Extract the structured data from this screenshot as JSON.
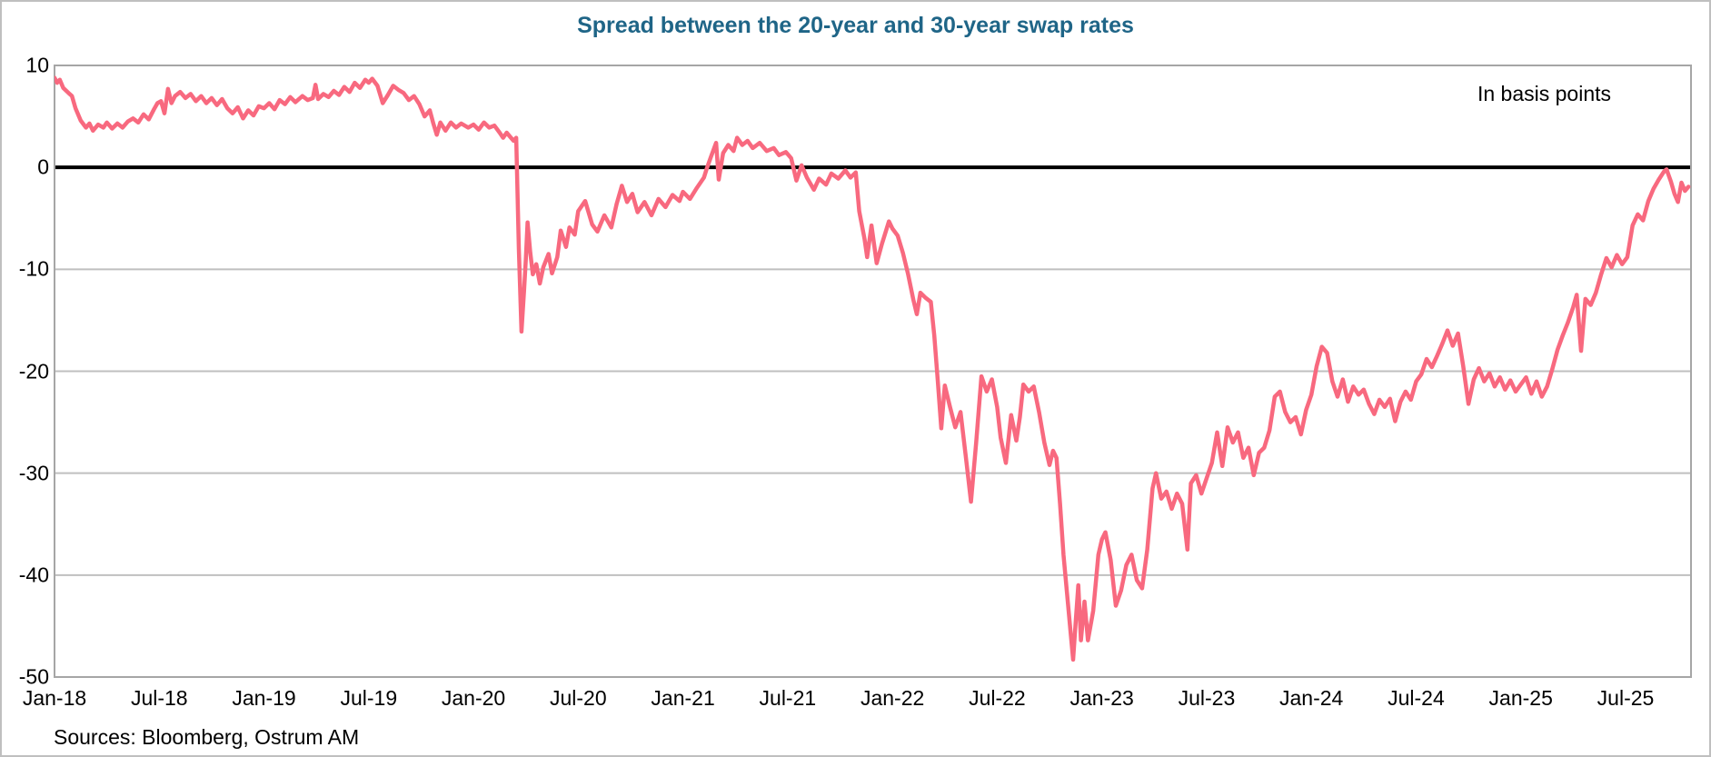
{
  "title": "Spread between the 20-year and 30-year swap rates",
  "annotation": "In basis points",
  "source": "Sources: Bloomberg, Ostrum AM",
  "colors": {
    "title": "#1F6587",
    "line": "#F8697F",
    "zero_line": "#000000",
    "gridline": "#BFBFBF",
    "plot_border": "#A6A6A6",
    "frame_border": "#BFBFBF"
  },
  "chart_data": {
    "type": "line",
    "title": "Spread between the 20-year and 30-year swap rates",
    "unit_label": "In basis points",
    "series_name": "Spread between the 20-year and 30-year swap rates (bp)",
    "xlabel": "",
    "ylabel": "",
    "x_unit": "months since Jan-2018",
    "xlim_months": [
      0,
      93.75
    ],
    "ylim": [
      -50,
      10
    ],
    "y_ticks": [
      10,
      0,
      -10,
      -20,
      -30,
      -40,
      -50
    ],
    "x_tick_months": [
      0,
      6,
      12,
      18,
      24,
      30,
      36,
      42,
      48,
      54,
      60,
      66,
      72,
      78,
      84,
      90
    ],
    "x_tick_labels": [
      "Jan-18",
      "Jul-18",
      "Jan-19",
      "Jul-19",
      "Jan-20",
      "Jul-20",
      "Jan-21",
      "Jul-21",
      "Jan-22",
      "Jul-22",
      "Jan-23",
      "Jul-23",
      "Jan-24",
      "Jul-24",
      "Jan-25",
      "Jul-25"
    ],
    "grid": "horizontal-only",
    "zero_line": true,
    "legend": "none",
    "points": [
      [
        0,
        8.8
      ],
      [
        0.15,
        8.3
      ],
      [
        0.3,
        8.6
      ],
      [
        0.5,
        7.8
      ],
      [
        0.8,
        7.3
      ],
      [
        1,
        7
      ],
      [
        1.2,
        5.8
      ],
      [
        1.5,
        4.6
      ],
      [
        1.8,
        3.9
      ],
      [
        2,
        4.3
      ],
      [
        2.2,
        3.6
      ],
      [
        2.5,
        4.2
      ],
      [
        2.8,
        3.9
      ],
      [
        3,
        4.4
      ],
      [
        3.3,
        3.8
      ],
      [
        3.6,
        4.3
      ],
      [
        3.9,
        3.9
      ],
      [
        4.2,
        4.5
      ],
      [
        4.5,
        4.8
      ],
      [
        4.8,
        4.4
      ],
      [
        5.1,
        5.2
      ],
      [
        5.4,
        4.7
      ],
      [
        5.7,
        5.7
      ],
      [
        5.9,
        6.3
      ],
      [
        6.1,
        6.5
      ],
      [
        6.3,
        5.3
      ],
      [
        6.5,
        7.7
      ],
      [
        6.7,
        6.3
      ],
      [
        6.9,
        7
      ],
      [
        7.2,
        7.4
      ],
      [
        7.5,
        6.8
      ],
      [
        7.8,
        7.2
      ],
      [
        8.1,
        6.5
      ],
      [
        8.4,
        7
      ],
      [
        8.7,
        6.3
      ],
      [
        9,
        6.8
      ],
      [
        9.3,
        6.1
      ],
      [
        9.6,
        6.7
      ],
      [
        9.9,
        5.8
      ],
      [
        10.2,
        5.3
      ],
      [
        10.5,
        5.9
      ],
      [
        10.8,
        4.8
      ],
      [
        11.1,
        5.6
      ],
      [
        11.4,
        5.1
      ],
      [
        11.7,
        6
      ],
      [
        12,
        5.8
      ],
      [
        12.3,
        6.3
      ],
      [
        12.6,
        5.7
      ],
      [
        12.9,
        6.6
      ],
      [
        13.2,
        6.2
      ],
      [
        13.5,
        6.9
      ],
      [
        13.8,
        6.4
      ],
      [
        14.2,
        7
      ],
      [
        14.5,
        6.6
      ],
      [
        14.8,
        6.8
      ],
      [
        14.95,
        8.1
      ],
      [
        15.1,
        6.7
      ],
      [
        15.4,
        7.2
      ],
      [
        15.7,
        6.9
      ],
      [
        16,
        7.5
      ],
      [
        16.3,
        7.1
      ],
      [
        16.6,
        7.9
      ],
      [
        16.9,
        7.4
      ],
      [
        17.2,
        8.3
      ],
      [
        17.5,
        7.8
      ],
      [
        17.8,
        8.6
      ],
      [
        18,
        8.3
      ],
      [
        18.2,
        8.7
      ],
      [
        18.5,
        8
      ],
      [
        18.8,
        6.3
      ],
      [
        19.1,
        7.1
      ],
      [
        19.4,
        8
      ],
      [
        19.7,
        7.6
      ],
      [
        20,
        7.3
      ],
      [
        20.3,
        6.6
      ],
      [
        20.6,
        7
      ],
      [
        20.9,
        6.2
      ],
      [
        21.2,
        5
      ],
      [
        21.5,
        5.6
      ],
      [
        21.7,
        4.3
      ],
      [
        21.9,
        3.2
      ],
      [
        22.1,
        4.4
      ],
      [
        22.4,
        3.6
      ],
      [
        22.7,
        4.4
      ],
      [
        23,
        3.9
      ],
      [
        23.3,
        4.3
      ],
      [
        23.7,
        3.9
      ],
      [
        24,
        4.2
      ],
      [
        24.3,
        3.7
      ],
      [
        24.6,
        4.4
      ],
      [
        24.9,
        3.9
      ],
      [
        25.2,
        4.1
      ],
      [
        25.5,
        3.4
      ],
      [
        25.7,
        2.9
      ],
      [
        25.9,
        3.4
      ],
      [
        26.1,
        3
      ],
      [
        26.3,
        2.6
      ],
      [
        26.45,
        2.9
      ],
      [
        26.6,
        -8
      ],
      [
        26.75,
        -16.1
      ],
      [
        26.9,
        -12
      ],
      [
        27,
        -9
      ],
      [
        27.1,
        -5.4
      ],
      [
        27.25,
        -8.3
      ],
      [
        27.4,
        -10.5
      ],
      [
        27.6,
        -9.5
      ],
      [
        27.8,
        -11.4
      ],
      [
        28,
        -9.8
      ],
      [
        28.3,
        -8.5
      ],
      [
        28.5,
        -10.4
      ],
      [
        28.8,
        -8.8
      ],
      [
        29,
        -6.2
      ],
      [
        29.3,
        -7.8
      ],
      [
        29.5,
        -5.9
      ],
      [
        29.8,
        -6.6
      ],
      [
        30,
        -4.3
      ],
      [
        30.4,
        -3.3
      ],
      [
        30.8,
        -5.6
      ],
      [
        31.1,
        -6.3
      ],
      [
        31.5,
        -4.7
      ],
      [
        31.9,
        -5.9
      ],
      [
        32.2,
        -3.6
      ],
      [
        32.5,
        -1.8
      ],
      [
        32.8,
        -3.4
      ],
      [
        33.1,
        -2.6
      ],
      [
        33.4,
        -4.4
      ],
      [
        33.8,
        -3.4
      ],
      [
        34.2,
        -4.7
      ],
      [
        34.6,
        -3.1
      ],
      [
        35,
        -3.9
      ],
      [
        35.4,
        -2.7
      ],
      [
        35.8,
        -3.3
      ],
      [
        36,
        -2.4
      ],
      [
        36.4,
        -3.1
      ],
      [
        36.8,
        -2
      ],
      [
        37.2,
        -1
      ],
      [
        37.35,
        -0.2
      ],
      [
        37.6,
        1
      ],
      [
        37.9,
        2.4
      ],
      [
        38.05,
        -1.2
      ],
      [
        38.3,
        1.4
      ],
      [
        38.6,
        2.2
      ],
      [
        38.9,
        1.6
      ],
      [
        39.1,
        2.9
      ],
      [
        39.4,
        2.2
      ],
      [
        39.7,
        2.6
      ],
      [
        40,
        1.9
      ],
      [
        40.4,
        2.4
      ],
      [
        40.8,
        1.6
      ],
      [
        41.2,
        1.9
      ],
      [
        41.5,
        1.2
      ],
      [
        41.9,
        1.5
      ],
      [
        42.2,
        0.9
      ],
      [
        42.5,
        -1.3
      ],
      [
        42.8,
        0.2
      ],
      [
        43.1,
        -1
      ],
      [
        43.5,
        -2.2
      ],
      [
        43.8,
        -1.1
      ],
      [
        44.2,
        -1.7
      ],
      [
        44.5,
        -0.6
      ],
      [
        44.9,
        -1.1
      ],
      [
        45.3,
        -0.3
      ],
      [
        45.6,
        -1
      ],
      [
        45.9,
        -0.5
      ],
      [
        46.1,
        -4.3
      ],
      [
        46.4,
        -7
      ],
      [
        46.55,
        -8.8
      ],
      [
        46.8,
        -5.7
      ],
      [
        47.1,
        -9.4
      ],
      [
        47.4,
        -7.5
      ],
      [
        47.8,
        -5.3
      ],
      [
        48,
        -6
      ],
      [
        48.3,
        -6.7
      ],
      [
        48.6,
        -8.4
      ],
      [
        48.9,
        -10.5
      ],
      [
        49.2,
        -13
      ],
      [
        49.4,
        -14.4
      ],
      [
        49.6,
        -12.3
      ],
      [
        49.9,
        -12.8
      ],
      [
        50.2,
        -13.2
      ],
      [
        50.4,
        -16.5
      ],
      [
        50.6,
        -21
      ],
      [
        50.8,
        -25.6
      ],
      [
        51,
        -21.4
      ],
      [
        51.3,
        -23.5
      ],
      [
        51.6,
        -25.5
      ],
      [
        51.9,
        -24
      ],
      [
        52.2,
        -28.3
      ],
      [
        52.5,
        -32.8
      ],
      [
        52.8,
        -27
      ],
      [
        53.1,
        -20.5
      ],
      [
        53.4,
        -22
      ],
      [
        53.7,
        -20.8
      ],
      [
        54,
        -23.5
      ],
      [
        54.2,
        -26.5
      ],
      [
        54.5,
        -29
      ],
      [
        54.8,
        -24.3
      ],
      [
        55.1,
        -26.8
      ],
      [
        55.3,
        -24.5
      ],
      [
        55.5,
        -21.3
      ],
      [
        55.8,
        -22
      ],
      [
        56.1,
        -21.5
      ],
      [
        56.4,
        -24
      ],
      [
        56.7,
        -27
      ],
      [
        57,
        -29.2
      ],
      [
        57.2,
        -27.8
      ],
      [
        57.4,
        -28.5
      ],
      [
        57.6,
        -33
      ],
      [
        57.8,
        -38
      ],
      [
        58,
        -41.7
      ],
      [
        58.2,
        -45.5
      ],
      [
        58.35,
        -48.3
      ],
      [
        58.5,
        -44.5
      ],
      [
        58.65,
        -41
      ],
      [
        58.8,
        -46.4
      ],
      [
        59,
        -42.6
      ],
      [
        59.2,
        -46.4
      ],
      [
        59.5,
        -43.5
      ],
      [
        59.8,
        -38
      ],
      [
        60,
        -36.5
      ],
      [
        60.2,
        -35.8
      ],
      [
        60.5,
        -38.5
      ],
      [
        60.8,
        -43
      ],
      [
        61.1,
        -41.5
      ],
      [
        61.4,
        -39
      ],
      [
        61.7,
        -38
      ],
      [
        62,
        -40.5
      ],
      [
        62.3,
        -41.3
      ],
      [
        62.6,
        -37.5
      ],
      [
        62.9,
        -31.5
      ],
      [
        63.1,
        -30
      ],
      [
        63.4,
        -32.5
      ],
      [
        63.7,
        -31.8
      ],
      [
        64,
        -33.5
      ],
      [
        64.3,
        -32
      ],
      [
        64.6,
        -33
      ],
      [
        64.9,
        -37.5
      ],
      [
        65.1,
        -31
      ],
      [
        65.4,
        -30.2
      ],
      [
        65.7,
        -32
      ],
      [
        66,
        -30.5
      ],
      [
        66.3,
        -29
      ],
      [
        66.6,
        -26
      ],
      [
        66.9,
        -29.3
      ],
      [
        67.2,
        -25.5
      ],
      [
        67.5,
        -27
      ],
      [
        67.8,
        -26
      ],
      [
        68.1,
        -28.5
      ],
      [
        68.4,
        -27.5
      ],
      [
        68.7,
        -30.2
      ],
      [
        69,
        -28
      ],
      [
        69.3,
        -27.5
      ],
      [
        69.6,
        -25.8
      ],
      [
        69.9,
        -22.5
      ],
      [
        70.2,
        -22
      ],
      [
        70.5,
        -24
      ],
      [
        70.8,
        -25
      ],
      [
        71.1,
        -24.5
      ],
      [
        71.4,
        -26.2
      ],
      [
        71.7,
        -23.8
      ],
      [
        72,
        -22.3
      ],
      [
        72.3,
        -19.5
      ],
      [
        72.6,
        -17.6
      ],
      [
        72.9,
        -18.2
      ],
      [
        73.2,
        -21
      ],
      [
        73.5,
        -22.5
      ],
      [
        73.8,
        -20.8
      ],
      [
        74.1,
        -23
      ],
      [
        74.4,
        -21.5
      ],
      [
        74.7,
        -22.3
      ],
      [
        75,
        -21.8
      ],
      [
        75.3,
        -23.2
      ],
      [
        75.6,
        -24.2
      ],
      [
        75.9,
        -22.8
      ],
      [
        76.2,
        -23.5
      ],
      [
        76.5,
        -22.7
      ],
      [
        76.8,
        -24.9
      ],
      [
        77.1,
        -23
      ],
      [
        77.4,
        -22
      ],
      [
        77.7,
        -22.8
      ],
      [
        78,
        -21
      ],
      [
        78.3,
        -20.3
      ],
      [
        78.6,
        -18.8
      ],
      [
        78.9,
        -19.6
      ],
      [
        79.2,
        -18.5
      ],
      [
        79.5,
        -17.3
      ],
      [
        79.8,
        -16
      ],
      [
        80.1,
        -17.5
      ],
      [
        80.4,
        -16.3
      ],
      [
        80.7,
        -19.5
      ],
      [
        81,
        -23.2
      ],
      [
        81.3,
        -20.8
      ],
      [
        81.6,
        -19.7
      ],
      [
        81.9,
        -21
      ],
      [
        82.2,
        -20.2
      ],
      [
        82.5,
        -21.5
      ],
      [
        82.8,
        -20.6
      ],
      [
        83.1,
        -21.8
      ],
      [
        83.4,
        -20.9
      ],
      [
        83.7,
        -22
      ],
      [
        84,
        -21.3
      ],
      [
        84.3,
        -20.6
      ],
      [
        84.6,
        -22.2
      ],
      [
        84.9,
        -21
      ],
      [
        85.2,
        -22.5
      ],
      [
        85.5,
        -21.5
      ],
      [
        85.8,
        -19.8
      ],
      [
        86.1,
        -17.9
      ],
      [
        86.4,
        -16.5
      ],
      [
        86.7,
        -15.2
      ],
      [
        87,
        -13.7
      ],
      [
        87.2,
        -12.5
      ],
      [
        87.45,
        -18
      ],
      [
        87.7,
        -12.9
      ],
      [
        88,
        -13.5
      ],
      [
        88.3,
        -12.3
      ],
      [
        88.6,
        -10.5
      ],
      [
        88.9,
        -8.9
      ],
      [
        89.2,
        -9.8
      ],
      [
        89.5,
        -8.6
      ],
      [
        89.8,
        -9.5
      ],
      [
        90.1,
        -8.8
      ],
      [
        90.4,
        -5.7
      ],
      [
        90.7,
        -4.6
      ],
      [
        91,
        -5.2
      ],
      [
        91.3,
        -3.3
      ],
      [
        91.6,
        -2.1
      ],
      [
        91.9,
        -1.2
      ],
      [
        92.2,
        -0.4
      ],
      [
        92.35,
        -0.2
      ],
      [
        92.6,
        -1.4
      ],
      [
        92.8,
        -2.6
      ],
      [
        93,
        -3.4
      ],
      [
        93.2,
        -1.5
      ],
      [
        93.4,
        -2.3
      ],
      [
        93.6,
        -1.9
      ]
    ]
  }
}
